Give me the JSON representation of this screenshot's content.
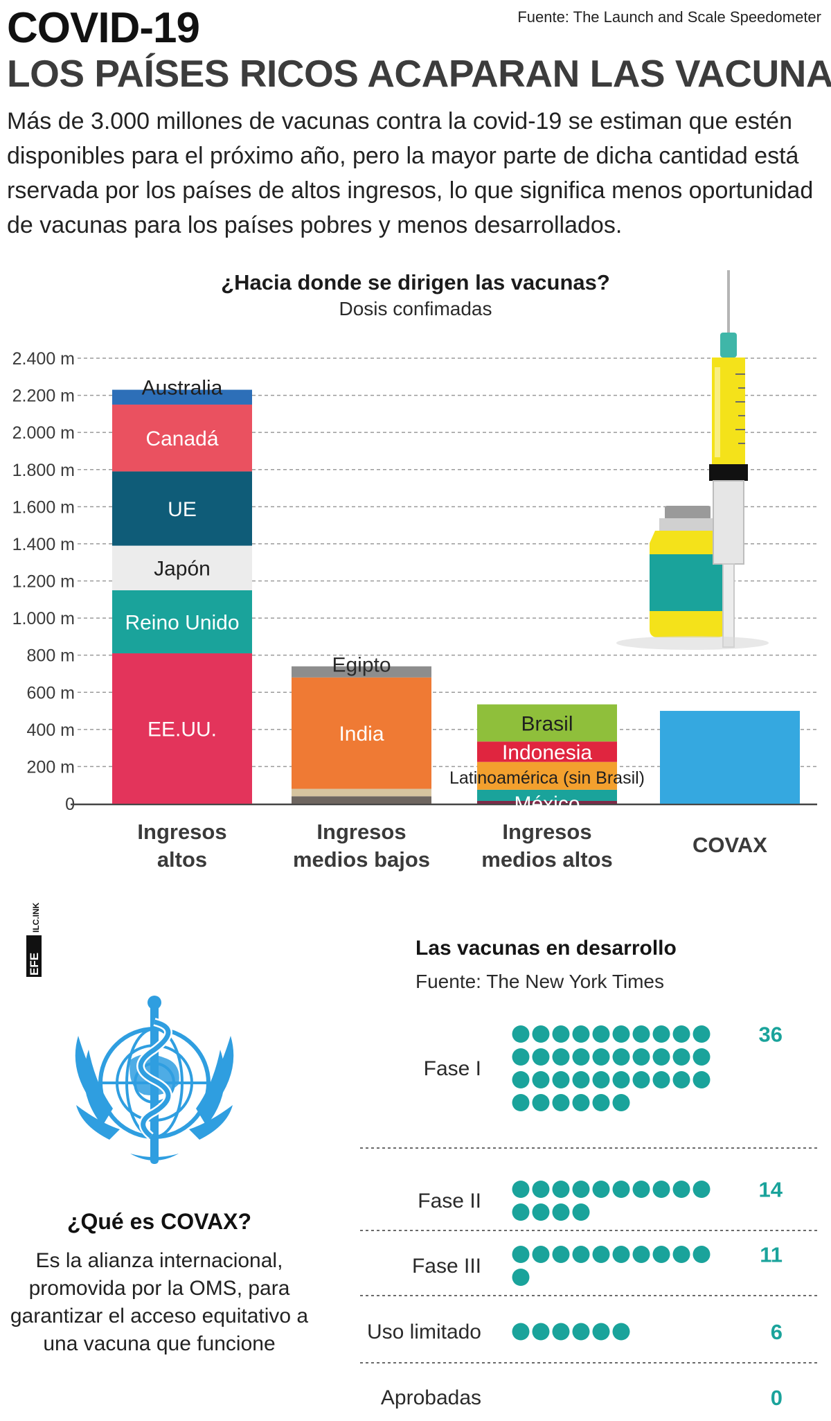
{
  "header": {
    "title_line1": "COVID-19",
    "title_line2": "LOS PAÍSES RICOS ACAPARAN LAS VACUNAS",
    "source": "Fuente: The Launch and Scale Speedometer",
    "intro": "Más de 3.000 millones de vacunas contra la covid-19 se estiman que estén disponibles para el próximo año, pero la mayor parte de dicha cantidad está rservada por los países de altos ingresos, lo que significa menos oportunidad de vacunas para los países pobres y menos desarrollados."
  },
  "colors": {
    "teal": "#1aa39b",
    "grid": "#9a9a9a",
    "axis": "#444444"
  },
  "chart_data": [
    {
      "type": "bar",
      "stacked": true,
      "title": "¿Hacia donde se dirigen las vacunas?",
      "subtitle": "Dosis confimadas",
      "ylim": [
        0,
        2400
      ],
      "yticks": [
        0,
        200,
        400,
        600,
        800,
        1000,
        1200,
        1400,
        1600,
        1800,
        2000,
        2200,
        2400
      ],
      "ytick_labels": [
        "0",
        "200 m",
        "400 m",
        "600 m",
        "800 m",
        "1.000 m",
        "1.200 m",
        "1.400 m",
        "1.600 m",
        "1.800 m",
        "2.000 m",
        "2.200 m",
        "2.400 m"
      ],
      "grid": true,
      "categories": [
        {
          "label_line1": "Ingresos",
          "label_line2": "altos"
        },
        {
          "label_line1": "Ingresos",
          "label_line2": "medios bajos"
        },
        {
          "label_line1": "Ingresos",
          "label_line2": "medios altos"
        },
        {
          "label_line1": "COVAX",
          "label_line2": ""
        }
      ],
      "stacks": [
        [
          {
            "name": "EE.UU.",
            "value": 810,
            "color": "#e3345b"
          },
          {
            "name": "Reino Unido",
            "value": 340,
            "color": "#1aa39b"
          },
          {
            "name": "Japón",
            "value": 240,
            "color": "#ececec"
          },
          {
            "name": "UE",
            "value": 400,
            "color": "#0f5c78"
          },
          {
            "name": "Canadá",
            "value": 360,
            "color": "#ea5160"
          },
          {
            "name": "Australia",
            "value": 80,
            "color": "#2d6fb8"
          }
        ],
        [
          {
            "name": "",
            "value": 40,
            "color": "#6e6660"
          },
          {
            "name": "",
            "value": 40,
            "color": "#d6c49f"
          },
          {
            "name": "India",
            "value": 600,
            "color": "#ef7a34"
          },
          {
            "name": "Egipto",
            "value": 60,
            "color": "#8d8d8d"
          }
        ],
        [
          {
            "name": "",
            "value": 15,
            "color": "#7e2a48"
          },
          {
            "name": "México",
            "value": 60,
            "color": "#1aa39b"
          },
          {
            "name": "Latinoamérica (sin Brasil)",
            "value": 150,
            "color": "#f3a02e"
          },
          {
            "name": "Indonesia",
            "value": 110,
            "color": "#e0253f"
          },
          {
            "name": "Brasil",
            "value": 200,
            "color": "#8fbf3b"
          }
        ],
        [
          {
            "name": "",
            "value": 500,
            "color": "#35a8e0"
          }
        ]
      ]
    },
    {
      "type": "dot",
      "title": "Las vacunas en desarrollo",
      "source": "Fuente: The New York Times",
      "categories": [
        "Fase I",
        "Fase II",
        "Fase III",
        "Uso limitado",
        "Aprobadas"
      ],
      "values": [
        36,
        14,
        11,
        6,
        0
      ],
      "value_labels": [
        "36",
        "14",
        "11",
        "6",
        "0"
      ]
    }
  ],
  "covax": {
    "title": "¿Qué es COVAX?",
    "description": "Es la alianza internacional, promovida por la OMS, para garantizar el acceso equitativo a una vacuna que funcione"
  },
  "credit": {
    "agency": "EFE",
    "tag": "ILC.INK"
  }
}
